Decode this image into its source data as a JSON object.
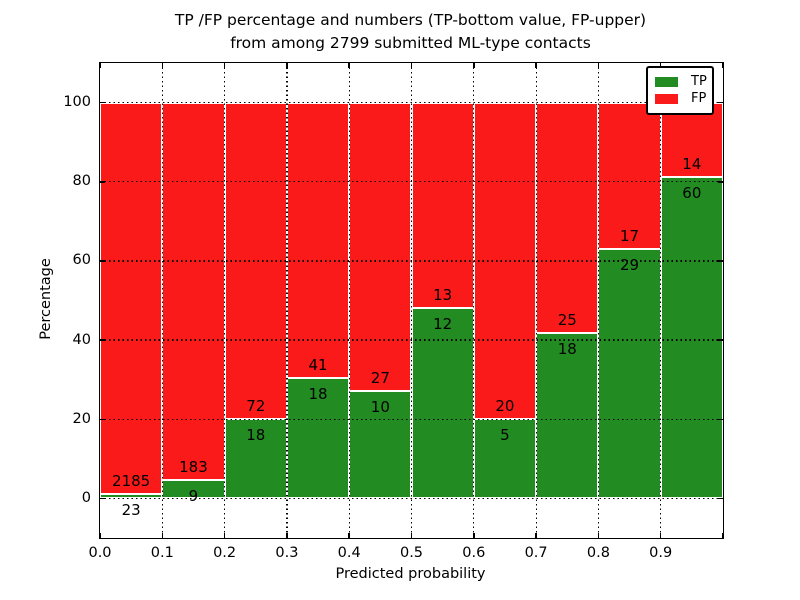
{
  "title": {
    "line1": "TP /FP percentage and numbers (TP-bottom value, FP-upper)",
    "line2": "from among 2799 submitted ML-type contacts"
  },
  "chart_data": {
    "type": "bar",
    "stacked": true,
    "normalized": "each bin scaled to 100%",
    "title": "TP /FP percentage and numbers (TP-bottom value, FP-upper)\nfrom among 2799 submitted ML-type contacts",
    "xlabel": "Predicted probability",
    "ylabel": "Percentage",
    "xlim": [
      0.0,
      1.0
    ],
    "ylim": [
      -10,
      110
    ],
    "grid": true,
    "bin_width": 0.1,
    "bin_starts": [
      0.0,
      0.1,
      0.2,
      0.3,
      0.4,
      0.5,
      0.6,
      0.7,
      0.8,
      0.9
    ],
    "xtick_labels": [
      "0.0",
      "0.1",
      "0.2",
      "0.3",
      "0.4",
      "0.5",
      "0.6",
      "0.7",
      "0.8",
      "0.9"
    ],
    "ytick_values": [
      0,
      20,
      40,
      60,
      80,
      100
    ],
    "series": [
      {
        "name": "TP",
        "color": "#228B22",
        "counts": [
          23,
          9,
          18,
          18,
          10,
          12,
          5,
          18,
          29,
          60
        ]
      },
      {
        "name": "FP",
        "color": "#FA1A1A",
        "counts": [
          2185,
          183,
          72,
          41,
          27,
          13,
          20,
          25,
          17,
          14
        ]
      }
    ],
    "tp_percent": [
      1.04,
      4.69,
      20.0,
      30.51,
      27.03,
      48.0,
      20.0,
      41.86,
      63.04,
      81.08
    ],
    "legend": {
      "position": "upper right",
      "entries": [
        {
          "label": "TP",
          "color": "#228B22"
        },
        {
          "label": "FP",
          "color": "#FA1A1A"
        }
      ]
    }
  },
  "colors": {
    "tp": "#228B22",
    "fp": "#FA1A1A",
    "grid": "#000000",
    "bar_edge": "#ffffff",
    "frame": "#000000",
    "background": "#ffffff"
  }
}
